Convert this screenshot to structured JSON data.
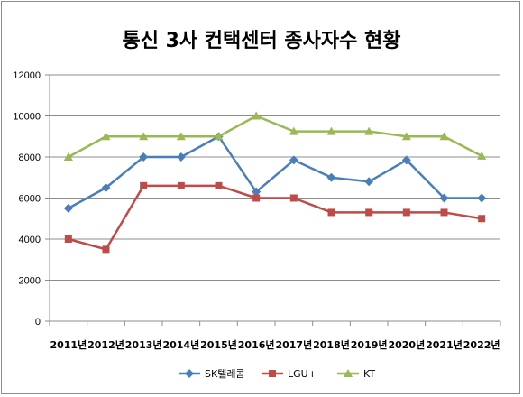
{
  "chart_data": {
    "type": "line",
    "title": "통신 3사  컨택센터 종사자수 현황",
    "categories": [
      "2011년",
      "2012년",
      "2013년",
      "2014년",
      "2015년",
      "2016년",
      "2017년",
      "2018년",
      "2019년",
      "2020년",
      "2021년",
      "2022년"
    ],
    "series": [
      {
        "name": "SK텔레콤",
        "color": "#4a7ebb",
        "marker": "diamond",
        "values": [
          5500,
          6500,
          8000,
          8000,
          9000,
          6300,
          7850,
          7000,
          6800,
          7850,
          6000,
          6000
        ]
      },
      {
        "name": "LGU+",
        "color": "#be4b48",
        "marker": "square",
        "values": [
          4000,
          3500,
          6600,
          6600,
          6600,
          6000,
          6000,
          5300,
          5300,
          5300,
          5300,
          5000
        ]
      },
      {
        "name": "KT",
        "color": "#98b954",
        "marker": "triangle",
        "values": [
          8000,
          9000,
          9000,
          9000,
          9000,
          10000,
          9250,
          9250,
          9250,
          9000,
          9000,
          8050
        ]
      }
    ],
    "ylim": [
      0,
      12000
    ],
    "yticks": [
      "0",
      "2000",
      "4000",
      "6000",
      "8000",
      "10000",
      "12000"
    ],
    "grid": true,
    "legend_position": "bottom"
  }
}
